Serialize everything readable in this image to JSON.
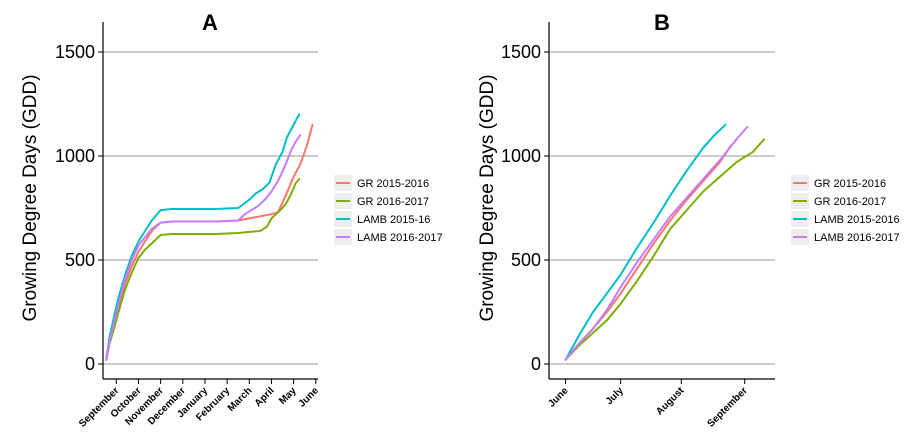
{
  "chart_data": [
    {
      "type": "line",
      "title": "A",
      "ylabel": "Growing Degree Days (GDD)",
      "xlabel": "",
      "ylim": [
        0,
        1500
      ],
      "yticks": [
        "0",
        "500",
        "1000",
        "1500"
      ],
      "grid": "horizontal",
      "legend_position": "right",
      "x_tick_labels": [
        "September",
        "October",
        "November",
        "December",
        "January",
        "February",
        "March",
        "April",
        "May",
        "June"
      ],
      "x_unit": "months after August 1",
      "x_tick_values": [
        1,
        2,
        3,
        4,
        5,
        6,
        7,
        8,
        9,
        10
      ],
      "xlim": [
        0.4,
        10.1
      ],
      "series": [
        {
          "name": "GR 2015-2016",
          "color": "#F8766D",
          "x": [
            0.55,
            0.7,
            0.9,
            1.1,
            1.4,
            1.7,
            2.0,
            2.3,
            2.6,
            3.0,
            3.5,
            4.5,
            5.5,
            6.5,
            7.0,
            7.5,
            8.0,
            8.3,
            8.6,
            8.8,
            9.0,
            9.3,
            9.6,
            9.85
          ],
          "y": [
            20,
            110,
            190,
            280,
            390,
            470,
            540,
            590,
            640,
            680,
            685,
            685,
            685,
            690,
            700,
            710,
            720,
            730,
            800,
            850,
            900,
            960,
            1050,
            1150
          ]
        },
        {
          "name": "GR 2016-2017",
          "color": "#7CAE00",
          "x": [
            0.55,
            0.7,
            0.9,
            1.1,
            1.4,
            1.7,
            2.0,
            2.3,
            2.6,
            3.0,
            3.5,
            4.5,
            5.5,
            6.5,
            7.0,
            7.5,
            7.8,
            8.0,
            8.2,
            8.5,
            8.7,
            8.9,
            9.1,
            9.25
          ],
          "y": [
            20,
            100,
            170,
            250,
            360,
            440,
            510,
            550,
            580,
            620,
            625,
            625,
            625,
            630,
            635,
            640,
            660,
            700,
            720,
            750,
            780,
            820,
            870,
            890
          ]
        },
        {
          "name": "LAMB 2015-16",
          "color": "#00BFC4",
          "x": [
            0.55,
            0.7,
            0.9,
            1.1,
            1.4,
            1.7,
            2.0,
            2.3,
            2.6,
            3.0,
            3.5,
            4.5,
            5.5,
            6.5,
            7.0,
            7.3,
            7.6,
            7.9,
            8.2,
            8.5,
            8.7,
            8.9,
            9.1,
            9.25
          ],
          "y": [
            25,
            130,
            230,
            320,
            430,
            520,
            590,
            640,
            690,
            740,
            745,
            745,
            745,
            750,
            790,
            820,
            840,
            870,
            960,
            1020,
            1090,
            1130,
            1170,
            1200
          ]
        },
        {
          "name": "LAMB 2016-2017",
          "color": "#C77CFF",
          "x": [
            0.55,
            0.7,
            0.9,
            1.1,
            1.4,
            1.7,
            2.0,
            2.3,
            2.6,
            3.0,
            3.5,
            4.5,
            5.5,
            6.5,
            6.8,
            7.1,
            7.4,
            7.7,
            8.0,
            8.3,
            8.6,
            8.9,
            9.1,
            9.3
          ],
          "y": [
            20,
            110,
            200,
            290,
            410,
            500,
            570,
            610,
            650,
            680,
            685,
            685,
            685,
            690,
            720,
            740,
            760,
            790,
            830,
            880,
            950,
            1030,
            1070,
            1100
          ]
        }
      ]
    },
    {
      "type": "line",
      "title": "B",
      "ylabel": "Growing Degree Days (GDD)",
      "xlabel": "",
      "ylim": [
        0,
        1500
      ],
      "yticks": [
        "0",
        "500",
        "1000",
        "1500"
      ],
      "grid": "horizontal",
      "legend_position": "right",
      "x_tick_labels": [
        "June",
        "July",
        "August",
        "September"
      ],
      "x_unit": "months after June 1",
      "x_tick_values": [
        0,
        1,
        2.1,
        3.25
      ],
      "xlim": [
        -0.3,
        3.8
      ],
      "series": [
        {
          "name": "GR 2015-2016",
          "color": "#F8766D",
          "x": [
            0,
            0.25,
            0.5,
            0.75,
            1.0,
            1.3,
            1.6,
            1.9,
            2.2,
            2.5,
            2.8,
            3.0
          ],
          "y": [
            20,
            100,
            170,
            250,
            340,
            460,
            580,
            690,
            790,
            880,
            970,
            1050
          ]
        },
        {
          "name": "GR 2016-2017",
          "color": "#7CAE00",
          "x": [
            0,
            0.25,
            0.5,
            0.75,
            1.0,
            1.3,
            1.6,
            1.9,
            2.2,
            2.5,
            2.8,
            3.1,
            3.4,
            3.6
          ],
          "y": [
            20,
            90,
            150,
            210,
            290,
            400,
            520,
            650,
            740,
            830,
            900,
            970,
            1020,
            1080
          ]
        },
        {
          "name": "LAMB 2015-2016",
          "color": "#00BFC4",
          "x": [
            0,
            0.25,
            0.5,
            0.75,
            1.0,
            1.3,
            1.6,
            1.9,
            2.2,
            2.5,
            2.7,
            2.9
          ],
          "y": [
            20,
            140,
            250,
            340,
            430,
            560,
            680,
            810,
            930,
            1040,
            1100,
            1150
          ]
        },
        {
          "name": "LAMB 2016-2017",
          "color": "#C77CFF",
          "x": [
            0,
            0.25,
            0.5,
            0.75,
            1.0,
            1.3,
            1.6,
            1.9,
            2.2,
            2.5,
            2.8,
            3.1,
            3.3
          ],
          "y": [
            20,
            100,
            170,
            260,
            370,
            490,
            600,
            710,
            800,
            890,
            980,
            1080,
            1140
          ]
        }
      ]
    }
  ]
}
